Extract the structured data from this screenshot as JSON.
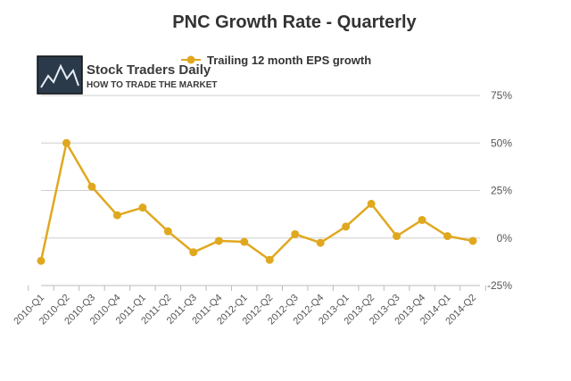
{
  "chart_data": {
    "type": "line",
    "title": "PNC Growth Rate - Quarterly",
    "categories": [
      "2010-Q1",
      "2010-Q2",
      "2010-Q3",
      "2010-Q4",
      "2011-Q1",
      "2011-Q2",
      "2011-Q3",
      "2011-Q4",
      "2012-Q1",
      "2012-Q2",
      "2012-Q3",
      "2012-Q4",
      "2013-Q1",
      "2013-Q2",
      "2013-Q3",
      "2013-Q4",
      "2014-Q1",
      "2014-Q2"
    ],
    "series": [
      {
        "name": "Trailing 12 month EPS growth",
        "color": "#e0a81f",
        "values": [
          -12,
          50,
          27,
          12,
          16,
          3.5,
          -7.5,
          -1.5,
          -2,
          -11.5,
          2,
          -2.5,
          6,
          18,
          1,
          9.5,
          1,
          -1.5
        ]
      }
    ],
    "yticks": [
      75,
      50,
      25,
      0,
      -25
    ],
    "ytick_labels": [
      "75%",
      "50%",
      "25%",
      "0%",
      "-25%"
    ],
    "ylim": [
      -25,
      75
    ],
    "grid": true,
    "legend_position": "top",
    "xlabel": "",
    "ylabel": ""
  },
  "logo": {
    "name": "Stock Traders Daily",
    "tagline": "HOW TO TRADE THE MARKET",
    "icon": "stock-chart-logo-icon"
  }
}
